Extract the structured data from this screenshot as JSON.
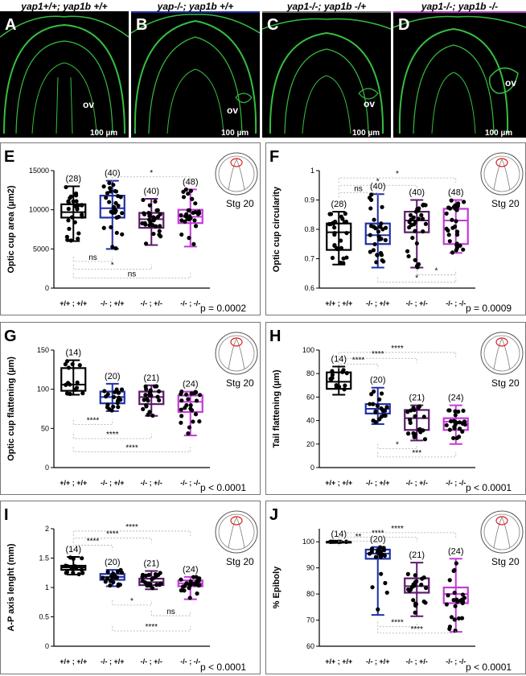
{
  "genotype_headers": [
    {
      "text": "yap1+/+; yap1b +/+",
      "color": "#000000"
    },
    {
      "text": "yap-/-; yap1b +/+",
      "color": "#1f2fa6"
    },
    {
      "text": "yap1-/-; yap1b -/+",
      "color": "#6b6b6b"
    },
    {
      "text": "yap1-/-; yap1b -/-",
      "color": "#b040c0"
    }
  ],
  "micrographs": [
    {
      "letter": "A",
      "ov": "ov",
      "scale": "100 µm"
    },
    {
      "letter": "B",
      "ov": "ov",
      "scale": "100 µm"
    },
    {
      "letter": "C",
      "ov": "ov",
      "scale": "100 µm"
    },
    {
      "letter": "D",
      "ov": "ov",
      "scale": "100 µm"
    }
  ],
  "colors": {
    "wt": "#000000",
    "yap1": "#1f2fa6",
    "het": "#5c1a6b",
    "dko": "#c23bd6",
    "micro_green": "#3fe04a"
  },
  "chart_data": [
    {
      "panel": "E",
      "type": "box",
      "ylabel": "Optic cup area (µm2)",
      "ylim": [
        0,
        15000
      ],
      "yticks": [
        0,
        5000,
        10000,
        15000
      ],
      "categories": [
        "+/+ ; +/+",
        "-/- ; +/+",
        "-/- ; +/-",
        "-/- ; -/-"
      ],
      "boxes": [
        {
          "n": "(28)",
          "min": 6000,
          "q1": 9000,
          "median": 9700,
          "q3": 10700,
          "max": 13000
        },
        {
          "n": "(40)",
          "min": 5000,
          "q1": 9000,
          "median": 10200,
          "q3": 11800,
          "max": 13700
        },
        {
          "n": "(40)",
          "min": 5500,
          "q1": 7700,
          "median": 8800,
          "q3": 9600,
          "max": 11400
        },
        {
          "n": "(48)",
          "min": 5300,
          "q1": 8300,
          "median": 9100,
          "q3": 10000,
          "max": 12600
        }
      ],
      "annotations": [
        {
          "text": "*",
          "from": 1,
          "to": 3,
          "side": "top",
          "level": 14200
        },
        {
          "text": "ns",
          "from": 0,
          "to": 1,
          "side": "bottom",
          "level": 3400
        },
        {
          "text": "*",
          "from": 0,
          "to": 2,
          "side": "bottom",
          "level": 2400
        },
        {
          "text": "ns",
          "from": 0,
          "to": 3,
          "side": "bottom",
          "level": 1300
        }
      ],
      "stage": "Stg 20",
      "pvalue": "p = 0.0002"
    },
    {
      "panel": "F",
      "type": "box",
      "ylabel": "Optic cup circularity",
      "ylim": [
        0.6,
        1.0
      ],
      "yticks": [
        0.6,
        0.7,
        0.8,
        0.9,
        1.0
      ],
      "categories": [
        "+/+ ; +/+",
        "-/- ; +/+",
        "-/- ; +/-",
        "-/- ; -/-"
      ],
      "boxes": [
        {
          "n": "(28)",
          "min": 0.68,
          "q1": 0.73,
          "median": 0.79,
          "q3": 0.82,
          "max": 0.86
        },
        {
          "n": "(40)",
          "min": 0.67,
          "q1": 0.75,
          "median": 0.78,
          "q3": 0.82,
          "max": 0.92
        },
        {
          "n": "(40)",
          "min": 0.67,
          "q1": 0.79,
          "median": 0.83,
          "q3": 0.86,
          "max": 0.9
        },
        {
          "n": "(48)",
          "min": 0.72,
          "q1": 0.75,
          "median": 0.83,
          "q3": 0.87,
          "max": 0.9
        }
      ],
      "annotations": [
        {
          "text": "*",
          "from": 0,
          "to": 3,
          "side": "top",
          "level": 0.975
        },
        {
          "text": "*",
          "from": 0,
          "to": 2,
          "side": "top",
          "level": 0.95
        },
        {
          "text": "ns",
          "from": 0,
          "to": 1,
          "side": "top",
          "level": 0.925
        },
        {
          "text": "*",
          "from": 2,
          "to": 3,
          "side": "bottom",
          "level": 0.645
        },
        {
          "text": "*",
          "from": 1,
          "to": 3,
          "side": "bottom",
          "level": 0.62
        }
      ],
      "stage": "Stg 20",
      "pvalue": "p = 0.0009"
    },
    {
      "panel": "G",
      "type": "box",
      "ylabel": "Optic cup flattening (µm)",
      "ylim": [
        0,
        150
      ],
      "yticks": [
        0,
        50,
        100,
        150
      ],
      "categories": [
        "+/+ ; +/+",
        "-/- ; +/+",
        "-/- ; +/-",
        "-/- ; -/-"
      ],
      "boxes": [
        {
          "n": "(14)",
          "min": 93,
          "q1": 98,
          "median": 106,
          "q3": 127,
          "max": 137
        },
        {
          "n": "(20)",
          "min": 72,
          "q1": 82,
          "median": 90,
          "q3": 97,
          "max": 107
        },
        {
          "n": "(21)",
          "min": 66,
          "q1": 81,
          "median": 90,
          "q3": 97,
          "max": 105
        },
        {
          "n": "(24)",
          "min": 41,
          "q1": 71,
          "median": 84,
          "q3": 92,
          "max": 97
        }
      ],
      "annotations": [
        {
          "text": "****",
          "from": 0,
          "to": 1,
          "side": "bottom",
          "level": 55
        },
        {
          "text": "****",
          "from": 0,
          "to": 2,
          "side": "bottom",
          "level": 37
        },
        {
          "text": "****",
          "from": 0,
          "to": 3,
          "side": "bottom",
          "level": 20
        }
      ],
      "stage": "Stg 20",
      "pvalue": "p < 0.0001"
    },
    {
      "panel": "H",
      "type": "box",
      "ylabel": "Tail flattening (µm)",
      "ylim": [
        0,
        100
      ],
      "yticks": [
        0,
        20,
        40,
        60,
        80,
        100
      ],
      "categories": [
        "+/+ ; +/+",
        "-/- ; +/+",
        "-/- ; +/-",
        "-/- ; -/-"
      ],
      "boxes": [
        {
          "n": "(14)",
          "min": 62,
          "q1": 67,
          "median": 73,
          "q3": 81,
          "max": 86
        },
        {
          "n": "(20)",
          "min": 37,
          "q1": 46,
          "median": 50,
          "q3": 54,
          "max": 68
        },
        {
          "n": "(21)",
          "min": 23,
          "q1": 32,
          "median": 42,
          "q3": 49,
          "max": 53
        },
        {
          "n": "(24)",
          "min": 20,
          "q1": 32,
          "median": 39,
          "q3": 42,
          "max": 53
        }
      ],
      "annotations": [
        {
          "text": "****",
          "from": 0,
          "to": 3,
          "side": "top",
          "level": 98
        },
        {
          "text": "****",
          "from": 0,
          "to": 2,
          "side": "top",
          "level": 93
        },
        {
          "text": "****",
          "from": 0,
          "to": 1,
          "side": "top",
          "level": 88
        },
        {
          "text": "*",
          "from": 1,
          "to": 2,
          "side": "bottom",
          "level": 16
        },
        {
          "text": "***",
          "from": 1,
          "to": 3,
          "side": "bottom",
          "level": 9
        }
      ],
      "stage": "Stg 20",
      "pvalue": "p < 0.0001"
    },
    {
      "panel": "I",
      "type": "box",
      "ylabel": "A-P axis lenght (mm)",
      "ylim": [
        0,
        2.0
      ],
      "yticks": [
        0.0,
        0.5,
        1.0,
        1.5,
        2.0
      ],
      "categories": [
        "+/+ ; +/+",
        "-/- ; +/+",
        "-/- ; +/-",
        "-/- ; -/-"
      ],
      "boxes": [
        {
          "n": "(14)",
          "min": 1.22,
          "q1": 1.3,
          "median": 1.34,
          "q3": 1.37,
          "max": 1.52
        },
        {
          "n": "(20)",
          "min": 1.02,
          "q1": 1.13,
          "median": 1.18,
          "q3": 1.23,
          "max": 1.3
        },
        {
          "n": "(21)",
          "min": 0.97,
          "q1": 1.04,
          "median": 1.09,
          "q3": 1.15,
          "max": 1.28
        },
        {
          "n": "(24)",
          "min": 0.8,
          "q1": 1.02,
          "median": 1.07,
          "q3": 1.12,
          "max": 1.18
        }
      ],
      "annotations": [
        {
          "text": "****",
          "from": 0,
          "to": 3,
          "side": "top",
          "level": 1.96
        },
        {
          "text": "****",
          "from": 0,
          "to": 2,
          "side": "top",
          "level": 1.84
        },
        {
          "text": "****",
          "from": 0,
          "to": 1,
          "side": "top",
          "level": 1.72
        },
        {
          "text": "*",
          "from": 1,
          "to": 2,
          "side": "bottom",
          "level": 0.7
        },
        {
          "text": "ns",
          "from": 2,
          "to": 3,
          "side": "bottom",
          "level": 0.52
        },
        {
          "text": "****",
          "from": 1,
          "to": 3,
          "side": "bottom",
          "level": 0.26
        }
      ],
      "stage": "Stg 20",
      "pvalue": "p < 0.0001"
    },
    {
      "panel": "J",
      "type": "box",
      "ylabel": "% Epiboly",
      "ylim": [
        60,
        105
      ],
      "yticks": [
        60,
        70,
        80,
        90,
        100
      ],
      "categories": [
        "+/+ ; +/+",
        "-/- ; +/+",
        "-/- ; +/-",
        "-/- ; -/-"
      ],
      "boxes": [
        {
          "n": "(14)",
          "min": 100,
          "q1": 100,
          "median": 100,
          "q3": 100,
          "max": 100
        },
        {
          "n": "(20)",
          "min": 72,
          "q1": 93.5,
          "median": 95.5,
          "q3": 97,
          "max": 98
        },
        {
          "n": "(21)",
          "min": 71.5,
          "q1": 80.5,
          "median": 83,
          "q3": 86,
          "max": 92
        },
        {
          "n": "(24)",
          "min": 65.5,
          "q1": 76.5,
          "median": 80,
          "q3": 82.5,
          "max": 93.5
        }
      ],
      "annotations": [
        {
          "text": "****",
          "from": 0,
          "to": 3,
          "side": "top",
          "level": 103.5
        },
        {
          "text": "****",
          "from": 0,
          "to": 2,
          "side": "top",
          "level": 101.8
        },
        {
          "text": "**",
          "from": 0,
          "to": 1,
          "side": "top",
          "level": 100.3
        },
        {
          "text": "****",
          "from": 1,
          "to": 2,
          "side": "bottom",
          "level": 67.5
        },
        {
          "text": "****",
          "from": 1,
          "to": 3,
          "side": "bottom",
          "level": 65
        }
      ],
      "stage": "Stg 20",
      "pvalue": "p < 0.0001"
    }
  ]
}
